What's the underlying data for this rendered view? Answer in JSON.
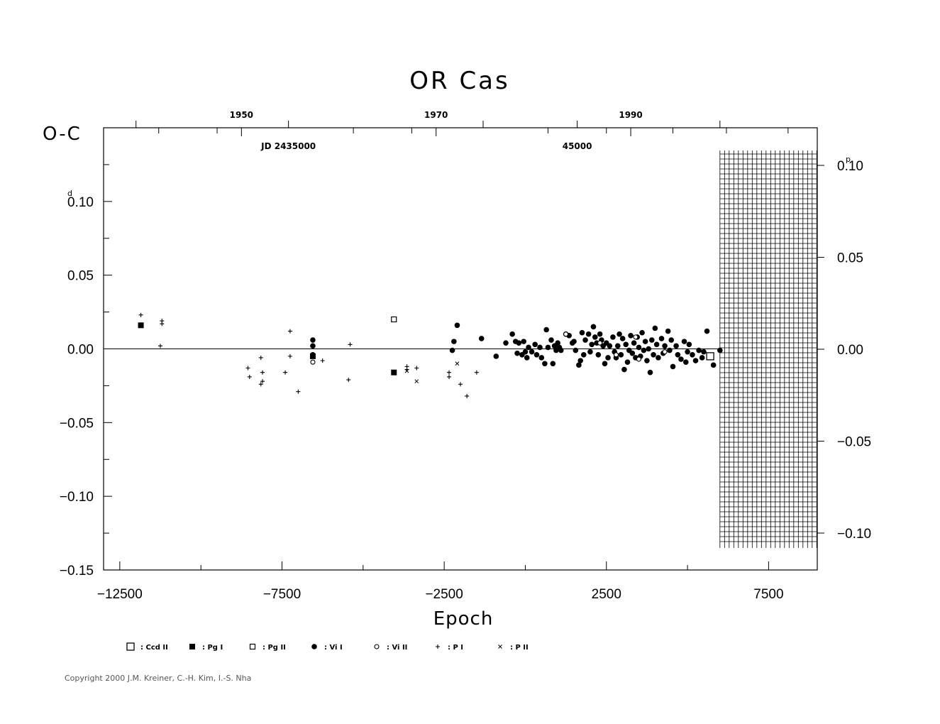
{
  "chart_data": {
    "type": "scatter",
    "title": "OR Cas",
    "ylabel": "O-C",
    "ylabel_unit_left": "d",
    "ylabel_unit_right": "p",
    "xlabel": "Epoch",
    "xlim": [
      -13000,
      9000
    ],
    "ylim": [
      -0.15,
      0.15
    ],
    "right_ylim": [
      -0.12,
      0.12
    ],
    "x_ticks": [
      -12500,
      -7500,
      -2500,
      2500,
      7500
    ],
    "x_tick_labels": [
      "−12500",
      "−7500",
      "−2500",
      "2500",
      "7500"
    ],
    "y_ticks": [
      -0.15,
      -0.1,
      -0.05,
      0.0,
      0.05,
      0.1
    ],
    "y_tick_labels": [
      "−0.15",
      "−0.10",
      "−0.05",
      "0.00",
      "0.05",
      "0.10"
    ],
    "right_y_ticks": [
      -0.1,
      -0.05,
      0.0,
      0.05,
      0.1
    ],
    "right_y_tick_labels": [
      "−0.10",
      "−0.05",
      "0.00",
      "0.05",
      "0.10"
    ],
    "top_year_ticks": [
      {
        "label": "1950",
        "epoch": -8750
      },
      {
        "label": "1970",
        "epoch": -2750
      },
      {
        "label": "1990",
        "epoch": 3250
      }
    ],
    "jd_labels": [
      {
        "label": "JD 2435000",
        "epoch": -7300
      },
      {
        "label": "45000",
        "epoch": 1600
      }
    ],
    "grid": false,
    "hatched_region": {
      "x_from": 6000,
      "x_to": 9000,
      "y_from": -0.135,
      "y_to": 0.135
    },
    "legend_position": "bottom",
    "legend": [
      {
        "symbol": "open-square-large",
        "label": ": Ccd  II"
      },
      {
        "symbol": "filled-square",
        "label": ": Pg  I"
      },
      {
        "symbol": "open-square-small",
        "label": ": Pg  II"
      },
      {
        "symbol": "filled-circle",
        "label": ": Vi  I"
      },
      {
        "symbol": "open-circle",
        "label": ": Vi  II"
      },
      {
        "symbol": "plus",
        "label": ": P  I"
      },
      {
        "symbol": "cross",
        "label": ": P  II"
      }
    ],
    "series": [
      {
        "name": "Ccd II",
        "symbol": "open-square-large",
        "points": [
          [
            5700,
            -0.005
          ]
        ]
      },
      {
        "name": "Pg I",
        "symbol": "filled-square",
        "points": [
          [
            -11850,
            0.016
          ],
          [
            -6550,
            -0.005
          ],
          [
            -4050,
            -0.016
          ]
        ]
      },
      {
        "name": "Pg II",
        "symbol": "open-square-small",
        "points": [
          [
            -4050,
            0.02
          ]
        ]
      },
      {
        "name": "Vi I",
        "symbol": "filled-circle",
        "points": [
          [
            -6550,
            0.006
          ],
          [
            -6550,
            0.002
          ],
          [
            -6550,
            -0.004
          ],
          [
            -2250,
            -0.001
          ],
          [
            -2200,
            0.005
          ],
          [
            -2100,
            0.016
          ],
          [
            -1350,
            0.007
          ],
          [
            -900,
            -0.005
          ],
          [
            -600,
            0.004
          ],
          [
            -400,
            0.01
          ],
          [
            -300,
            0.005
          ],
          [
            -250,
            -0.003
          ],
          [
            -200,
            0.004
          ],
          [
            -100,
            -0.004
          ],
          [
            -50,
            0.005
          ],
          [
            0,
            -0.002
          ],
          [
            50,
            -0.006
          ],
          [
            100,
            0.001
          ],
          [
            200,
            -0.002
          ],
          [
            300,
            0.003
          ],
          [
            350,
            -0.004
          ],
          [
            450,
            0.001
          ],
          [
            500,
            -0.006
          ],
          [
            600,
            -0.01
          ],
          [
            650,
            0.013
          ],
          [
            700,
            0.001
          ],
          [
            800,
            0.006
          ],
          [
            850,
            -0.01
          ],
          [
            900,
            0.002
          ],
          [
            950,
            -0.001
          ],
          [
            1000,
            0.004
          ],
          [
            1050,
            0.001
          ],
          [
            1100,
            -0.001
          ],
          [
            1250,
            0.01
          ],
          [
            1350,
            0.009
          ],
          [
            1450,
            0.004
          ],
          [
            1500,
            0.005
          ],
          [
            1550,
            -0.001
          ],
          [
            1650,
            -0.011
          ],
          [
            1700,
            -0.008
          ],
          [
            1750,
            0.011
          ],
          [
            1800,
            -0.004
          ],
          [
            1850,
            0.006
          ],
          [
            1950,
            0.01
          ],
          [
            2000,
            -0.002
          ],
          [
            2050,
            0.003
          ],
          [
            2100,
            0.015
          ],
          [
            2150,
            0.008
          ],
          [
            2200,
            0.004
          ],
          [
            2250,
            -0.004
          ],
          [
            2300,
            0.01
          ],
          [
            2350,
            0.006
          ],
          [
            2400,
            0.002
          ],
          [
            2450,
            -0.01
          ],
          [
            2500,
            0.004
          ],
          [
            2550,
            -0.006
          ],
          [
            2600,
            0.002
          ],
          [
            2700,
            0.008
          ],
          [
            2750,
            -0.002
          ],
          [
            2800,
            -0.006
          ],
          [
            2850,
            0.002
          ],
          [
            2900,
            0.01
          ],
          [
            2950,
            -0.004
          ],
          [
            3000,
            0.007
          ],
          [
            3050,
            -0.014
          ],
          [
            3100,
            0.003
          ],
          [
            3150,
            -0.009
          ],
          [
            3200,
            -0.001
          ],
          [
            3250,
            0.009
          ],
          [
            3300,
            -0.003
          ],
          [
            3350,
            0.004
          ],
          [
            3400,
            -0.006
          ],
          [
            3450,
            0.008
          ],
          [
            3500,
            0.001
          ],
          [
            3550,
            -0.005
          ],
          [
            3600,
            0.011
          ],
          [
            3650,
            -0.001
          ],
          [
            3700,
            0.005
          ],
          [
            3750,
            -0.008
          ],
          [
            3800,
            0.0
          ],
          [
            3850,
            -0.016
          ],
          [
            3900,
            0.006
          ],
          [
            3950,
            -0.004
          ],
          [
            4000,
            0.014
          ],
          [
            4050,
            0.003
          ],
          [
            4100,
            -0.006
          ],
          [
            4200,
            0.007
          ],
          [
            4250,
            -0.003
          ],
          [
            4300,
            0.002
          ],
          [
            4400,
            0.012
          ],
          [
            4450,
            -0.001
          ],
          [
            4500,
            0.006
          ],
          [
            4550,
            -0.012
          ],
          [
            4650,
            0.002
          ],
          [
            4700,
            -0.004
          ],
          [
            4800,
            -0.007
          ],
          [
            4900,
            0.005
          ],
          [
            4950,
            -0.009
          ],
          [
            5000,
            -0.002
          ],
          [
            5050,
            0.003
          ],
          [
            5150,
            -0.004
          ],
          [
            5250,
            -0.008
          ],
          [
            5350,
            -0.001
          ],
          [
            5450,
            -0.006
          ],
          [
            5500,
            -0.002
          ],
          [
            5600,
            0.012
          ],
          [
            5800,
            -0.011
          ],
          [
            6000,
            -0.001
          ]
        ]
      },
      {
        "name": "Vi II",
        "symbol": "open-circle",
        "points": [
          [
            -6550,
            -0.009
          ],
          [
            1250,
            0.01
          ],
          [
            2300,
            0.004
          ],
          [
            2800,
            -0.004
          ],
          [
            3400,
            0.008
          ],
          [
            3500,
            -0.007
          ],
          [
            4300,
            -0.002
          ]
        ]
      },
      {
        "name": "P I",
        "symbol": "plus",
        "points": [
          [
            -11850,
            0.023
          ],
          [
            -11200,
            0.019
          ],
          [
            -11200,
            0.017
          ],
          [
            -11250,
            0.002
          ],
          [
            -8550,
            -0.013
          ],
          [
            -8500,
            -0.019
          ],
          [
            -8150,
            -0.006
          ],
          [
            -8100,
            -0.016
          ],
          [
            -8150,
            -0.024
          ],
          [
            -8100,
            -0.022
          ],
          [
            -7400,
            -0.016
          ],
          [
            -7250,
            0.012
          ],
          [
            -7250,
            -0.005
          ],
          [
            -7000,
            -0.029
          ],
          [
            -6250,
            -0.008
          ],
          [
            -5400,
            0.003
          ],
          [
            -5450,
            -0.021
          ],
          [
            -3650,
            -0.014
          ],
          [
            -3650,
            -0.012
          ],
          [
            -3350,
            -0.013
          ],
          [
            -2350,
            -0.016
          ],
          [
            -2350,
            -0.019
          ],
          [
            -2000,
            -0.024
          ],
          [
            -1800,
            -0.032
          ],
          [
            -1500,
            -0.016
          ]
        ]
      },
      {
        "name": "P II",
        "symbol": "cross",
        "points": [
          [
            -3650,
            -0.015
          ],
          [
            -3350,
            -0.022
          ],
          [
            -2100,
            -0.01
          ]
        ]
      }
    ]
  },
  "copyright": "Copyright 2000 J.M. Kreiner, C.-H. Kim, I.-S. Nha"
}
